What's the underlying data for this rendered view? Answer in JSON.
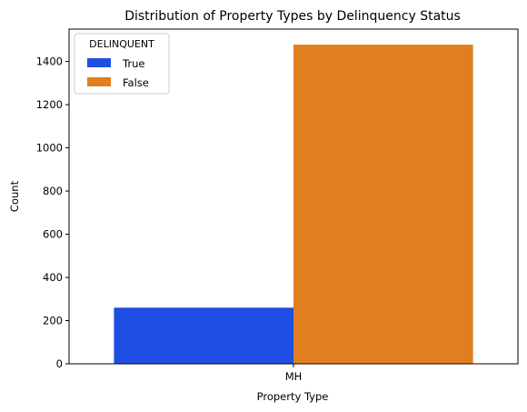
{
  "chart_data": {
    "type": "bar",
    "title": "Distribution of Property Types by Delinquency Status",
    "xlabel": "Property Type",
    "ylabel": "Count",
    "categories": [
      "MH"
    ],
    "series": [
      {
        "name": "True",
        "values": [
          260
        ],
        "color": "#1f4ee3"
      },
      {
        "name": "False",
        "values": [
          1478
        ],
        "color": "#e07f20"
      }
    ],
    "ylim": [
      0,
      1550
    ],
    "yticks": [
      0,
      200,
      400,
      600,
      800,
      1000,
      1200,
      1400
    ],
    "grid": false,
    "legend": {
      "title": "DELINQUENT",
      "placement": "top-left"
    }
  }
}
